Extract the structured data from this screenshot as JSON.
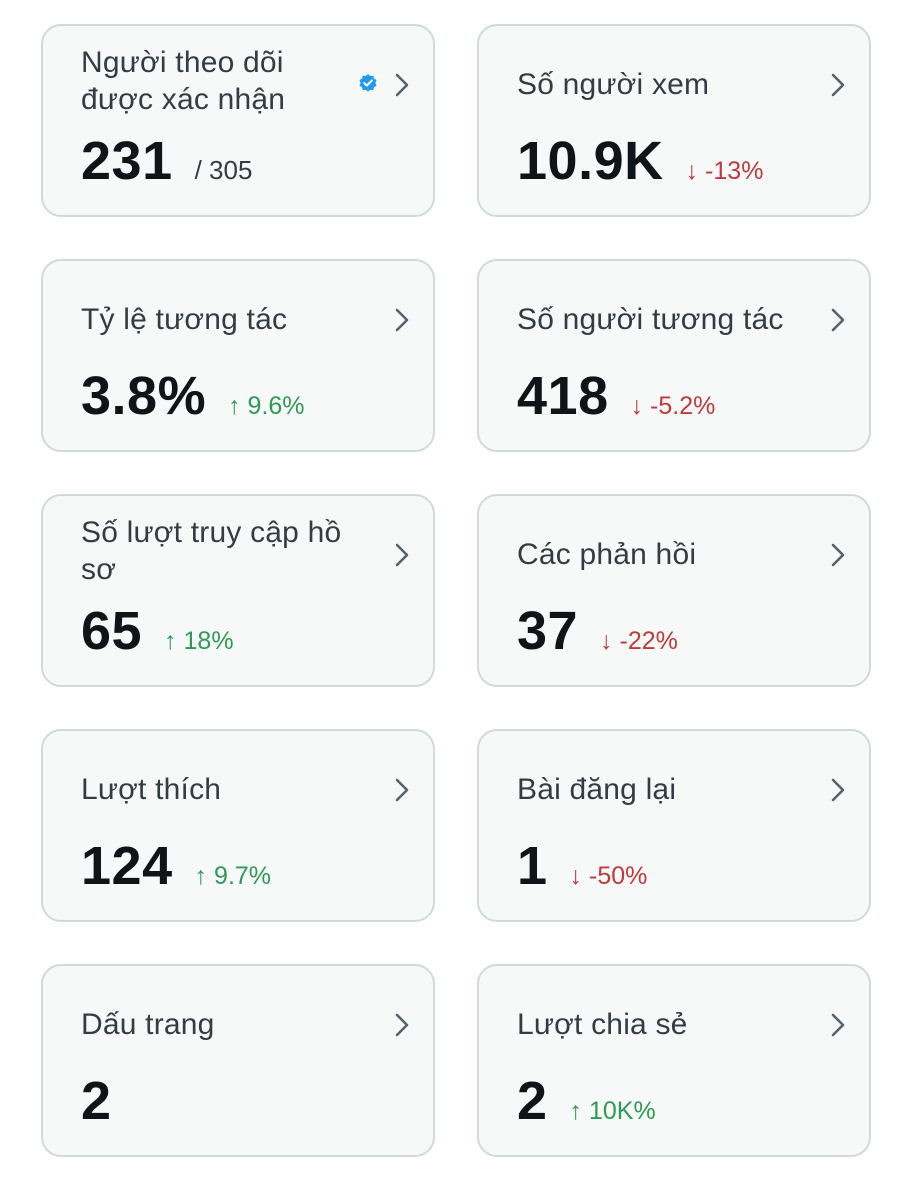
{
  "cards": [
    {
      "label": "Người theo dõi được xác nhận",
      "value": "231",
      "total": "/ 305",
      "verified_icon": "verified-badge-icon",
      "verified_color": "#1d9bf0"
    },
    {
      "label": "Số người xem",
      "value": "10.9K",
      "change": "↓ -13%",
      "direction": "down"
    },
    {
      "label": "Tỷ lệ tương tác",
      "value": "3.8%",
      "change": "↑ 9.6%",
      "direction": "up"
    },
    {
      "label": "Số người tương tác",
      "value": "418",
      "change": "↓ -5.2%",
      "direction": "down"
    },
    {
      "label": "Số lượt truy cập hồ sơ",
      "value": "65",
      "change": "↑ 18%",
      "direction": "up"
    },
    {
      "label": "Các phản hồi",
      "value": "37",
      "change": "↓ -22%",
      "direction": "down"
    },
    {
      "label": "Lượt thích",
      "value": "124",
      "change": "↑ 9.7%",
      "direction": "up"
    },
    {
      "label": "Bài đăng lại",
      "value": "1",
      "change": "↓ -50%",
      "direction": "down"
    },
    {
      "label": "Dấu trang",
      "value": "2"
    },
    {
      "label": "Lượt chia sẻ",
      "value": "2",
      "change": "↑ 10K%",
      "direction": "up"
    }
  ],
  "colors": {
    "up": "#2e9a55",
    "down": "#c0393b",
    "card_background": "#f7f9f9",
    "card_border": "#cfd9de"
  },
  "icons": {
    "chevron": "chevron-right-icon",
    "verified": "verified-badge-icon"
  }
}
